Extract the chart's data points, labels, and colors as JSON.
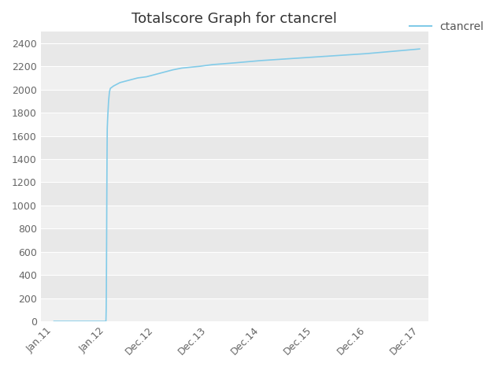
{
  "title": "Totalscore Graph for ctancrel",
  "legend_label": "ctancrel",
  "line_color": "#82cbe8",
  "background_color": "#ffffff",
  "plot_bg_color": "#e8e8e8",
  "band_color": "#f0f0f0",
  "grid_color": "#ffffff",
  "ylim": [
    0,
    2500
  ],
  "yticks": [
    0,
    200,
    400,
    600,
    800,
    1000,
    1200,
    1400,
    1600,
    1800,
    2000,
    2200,
    2400
  ],
  "x_tick_labels": [
    "Jan.11",
    "Jan.12",
    "Dec.12",
    "Dec.13",
    "Dec.14",
    "Dec.15",
    "Dec.16",
    "Dec.17"
  ],
  "data_x": [
    0,
    11.8,
    11.85,
    11.9,
    11.95,
    12.0,
    12.05,
    12.1,
    12.2,
    12.4,
    12.6,
    12.8,
    13.5,
    15.0,
    17.0,
    19.0,
    21.0,
    23.0,
    25.0,
    27.0,
    29.0,
    33.0,
    36.0,
    41.0,
    47.0,
    59.0,
    71.0,
    83.0
  ],
  "data_y": [
    0,
    0,
    90,
    280,
    650,
    1080,
    1430,
    1660,
    1760,
    1900,
    1980,
    2010,
    2030,
    2060,
    2080,
    2100,
    2110,
    2130,
    2150,
    2170,
    2185,
    2200,
    2215,
    2230,
    2250,
    2280,
    2310,
    2350
  ],
  "title_fontsize": 13,
  "tick_fontsize": 9,
  "legend_fontsize": 10,
  "x_tick_positions": [
    0,
    12,
    23,
    35,
    47,
    59,
    71,
    83
  ],
  "xlim": [
    -3,
    85
  ]
}
